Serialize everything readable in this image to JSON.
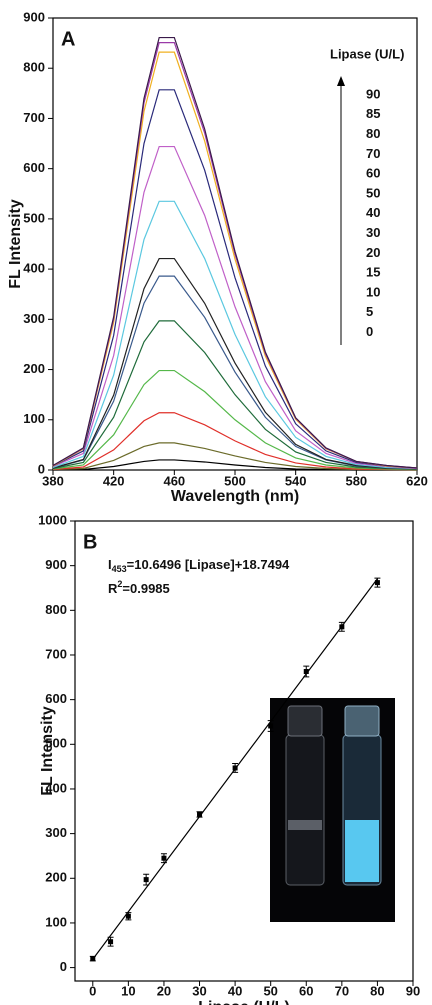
{
  "chart_data": [
    {
      "type": "line",
      "panel_label": "A",
      "x_label": "Wavelength (nm)",
      "y_label": "FL Intensity",
      "legend_title": "Lipase (U/L)",
      "xlim": [
        380,
        620
      ],
      "xticks": [
        380,
        420,
        460,
        500,
        540,
        580,
        620
      ],
      "ylim": [
        0,
        900
      ],
      "yticks": [
        0,
        100,
        200,
        300,
        400,
        500,
        600,
        700,
        800,
        900
      ],
      "x": [
        380,
        400,
        420,
        440,
        450,
        460,
        480,
        500,
        520,
        540,
        560,
        580,
        600,
        620
      ],
      "series": [
        {
          "name": "0",
          "color": "#000000",
          "values": [
            0,
            1,
            7,
            17,
            20,
            20,
            16,
            10,
            5,
            2,
            1,
            0,
            0,
            0
          ]
        },
        {
          "name": "5",
          "color": "#6b6b2a",
          "values": [
            1,
            3,
            19,
            47,
            54,
            54,
            43,
            28,
            15,
            7,
            3,
            1,
            1,
            0
          ]
        },
        {
          "name": "10",
          "color": "#e0302a",
          "values": [
            1,
            6,
            40,
            98,
            114,
            114,
            90,
            58,
            31,
            14,
            6,
            2,
            1,
            1
          ]
        },
        {
          "name": "15",
          "color": "#55b84a",
          "values": [
            2,
            10,
            70,
            170,
            198,
            198,
            156,
            100,
            54,
            24,
            10,
            4,
            2,
            1
          ]
        },
        {
          "name": "20",
          "color": "#1f6b3a",
          "values": [
            3,
            15,
            105,
            255,
            297,
            297,
            234,
            150,
            81,
            36,
            15,
            6,
            3,
            2
          ]
        },
        {
          "name": "30",
          "color": "#3a5a8c",
          "values": [
            4,
            20,
            137,
            332,
            386,
            386,
            304,
            195,
            105,
            47,
            20,
            8,
            4,
            2
          ]
        },
        {
          "name": "40",
          "color": "#222222",
          "values": [
            4,
            21,
            149,
            361,
            421,
            421,
            332,
            213,
            115,
            51,
            21,
            9,
            4,
            2
          ]
        },
        {
          "name": "50",
          "color": "#5bc8e0",
          "values": [
            5,
            27,
            189,
            459,
            535,
            535,
            421,
            270,
            146,
            65,
            27,
            11,
            5,
            3
          ]
        },
        {
          "name": "60",
          "color": "#c060c8",
          "values": [
            7,
            33,
            228,
            553,
            644,
            644,
            507,
            325,
            176,
            78,
            33,
            13,
            7,
            3
          ]
        },
        {
          "name": "70",
          "color": "#2a2a7a",
          "values": [
            8,
            38,
            268,
            650,
            757,
            757,
            597,
            383,
            207,
            92,
            38,
            15,
            8,
            4
          ]
        },
        {
          "name": "80",
          "color": "#f0b020",
          "values": [
            8,
            42,
            294,
            714,
            832,
            832,
            655,
            420,
            227,
            101,
            42,
            17,
            8,
            4
          ]
        },
        {
          "name": "85",
          "color": "#9a3aa8",
          "values": [
            9,
            43,
            301,
            731,
            851,
            851,
            671,
            430,
            232,
            103,
            43,
            17,
            9,
            4
          ]
        },
        {
          "name": "90",
          "color": "#3a1a4a",
          "values": [
            9,
            44,
            305,
            740,
            861,
            861,
            679,
            435,
            235,
            104,
            44,
            17,
            9,
            4
          ]
        }
      ]
    },
    {
      "type": "scatter",
      "panel_label": "B",
      "x_label": "Lipase (U/L)",
      "y_label": "FL Intensity",
      "eq_symbol": "I",
      "eq_subscript": "453",
      "eq_text": "=10.6496 [Lipase]+18.7494",
      "r_symbol": "R",
      "r_superscript": "2",
      "r_text": "=0.9985",
      "xlim": [
        -5,
        90
      ],
      "xticks": [
        0,
        10,
        20,
        30,
        40,
        50,
        60,
        70,
        80,
        90
      ],
      "ylim": [
        -30,
        1000
      ],
      "yticks": [
        0,
        100,
        200,
        300,
        400,
        500,
        600,
        700,
        800,
        900,
        1000
      ],
      "x": [
        0,
        5,
        10,
        15,
        20,
        30,
        40,
        50,
        60,
        70,
        80
      ],
      "values": [
        20,
        58,
        115,
        197,
        245,
        343,
        447,
        541,
        663,
        763,
        862
      ],
      "errors": [
        5,
        10,
        8,
        12,
        10,
        6,
        10,
        12,
        12,
        10,
        10
      ],
      "color": "#000000",
      "fit": {
        "slope": 10.6496,
        "intercept": 18.7494,
        "xrange": [
          0,
          80
        ]
      }
    }
  ]
}
